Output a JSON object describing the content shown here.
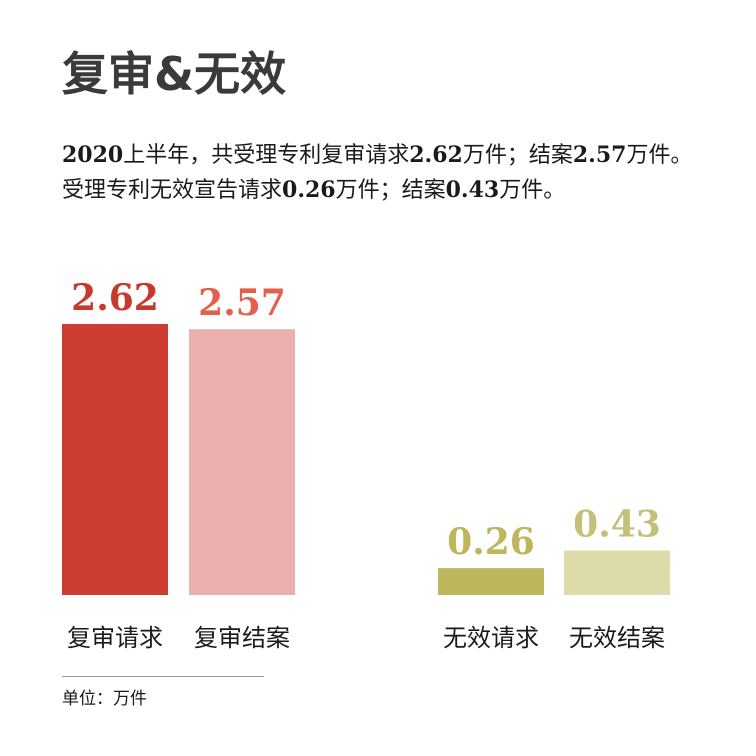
{
  "title": "复审&无效",
  "summary": {
    "s1": "2020",
    "s2": "上半年，共受理专利复审请求",
    "s3": "2.62",
    "s4": "万件；结案",
    "s5": "2.57",
    "s6": "万件。受理专利无效宣告请求",
    "s7": "0.26",
    "s8": "万件；结案",
    "s9": "0.43",
    "s10": "万件。"
  },
  "unit_label": "单位：万件",
  "chart_data": {
    "type": "bar",
    "title": "复审&无效",
    "ylabel": "单位：万件",
    "ylim": [
      0,
      2.62
    ],
    "categories": [
      "复审请求",
      "复审结案",
      "无效请求",
      "无效结案"
    ],
    "values": [
      2.62,
      2.57,
      0.26,
      0.43
    ],
    "labels": [
      "2.62",
      "2.57",
      "0.26",
      "0.43"
    ],
    "bar_colors": [
      "#cc3c30",
      "#ebb1ae",
      "#bdb65a",
      "#dddba9"
    ],
    "label_colors": [
      "#c7392c",
      "#e5604b",
      "#bdb65a",
      "#c5c079"
    ]
  }
}
